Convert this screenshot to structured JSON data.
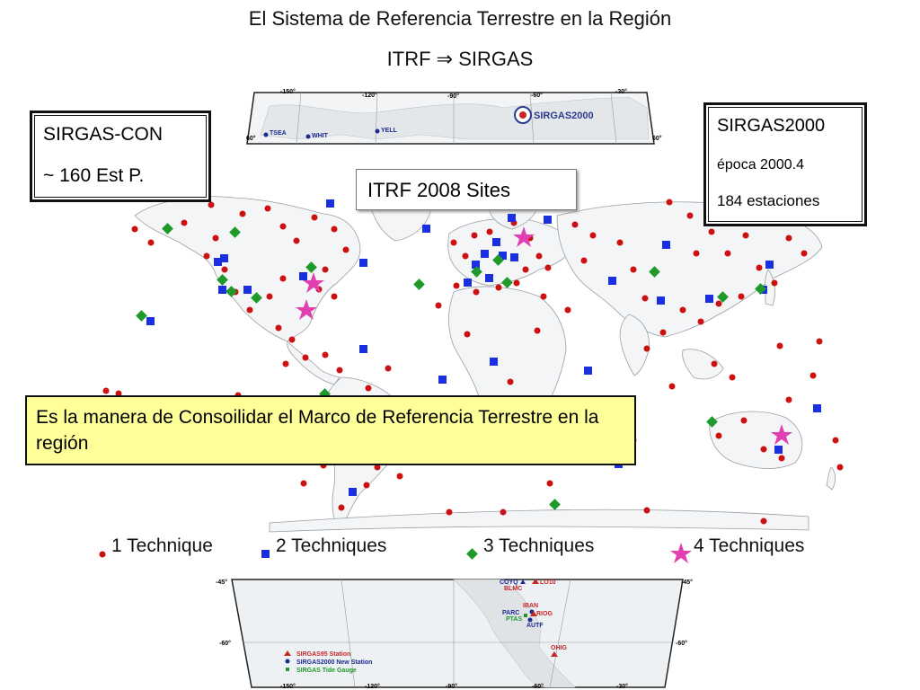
{
  "title_line1": "El Sistema de Referencia Terrestre en la Región",
  "title_line2": "ITRF  ⇒  SIRGAS",
  "sirgas_con": {
    "line1": "SIRGAS-CON",
    "line2": "~ 160 Est P."
  },
  "sirgas2000_box": {
    "line1": "SIRGAS2000",
    "line2": "época 2000.4",
    "line3": "184 estaciones"
  },
  "itrf_label": "ITRF 2008 Sites",
  "note": "Es la manera de Consoilidar el Marco de Referencia Terrestre en la región",
  "legend": [
    {
      "label": "1 Technique",
      "symbol": "dot",
      "color": "#cc1111"
    },
    {
      "label": "2 Techniques",
      "symbol": "square",
      "color": "#1a2fe0"
    },
    {
      "label": "3 Techniques",
      "symbol": "diamond",
      "color": "#1f9a2a"
    },
    {
      "label": "4 Techniques",
      "symbol": "star",
      "color": "#e040b0"
    }
  ],
  "top_inset": {
    "logo": "SIRGAS2000",
    "lon_labels": [
      "-150°",
      "-120°",
      "-90°",
      "-60°",
      "-30°"
    ],
    "lat_labels": [
      "60°",
      "60°"
    ],
    "stations": [
      "TSEA",
      "WHIT",
      "YELL"
    ]
  },
  "bottom_inset": {
    "lon_labels": [
      "-150°",
      "-120°",
      "-90°",
      "-60°",
      "-30°"
    ],
    "lat_labels": [
      "-45°",
      "-45°",
      "-60°",
      "-60°"
    ],
    "stations": [
      "COYQ",
      "LO10",
      "BLMC",
      "IBAN",
      "PARC",
      "RIOG",
      "PTAS",
      "AUTF",
      "OHIG"
    ],
    "legend": [
      "SIRGAS95 Station",
      "SIRGAS2000 New Station",
      "SIRGAS Tide Gauge"
    ]
  }
}
